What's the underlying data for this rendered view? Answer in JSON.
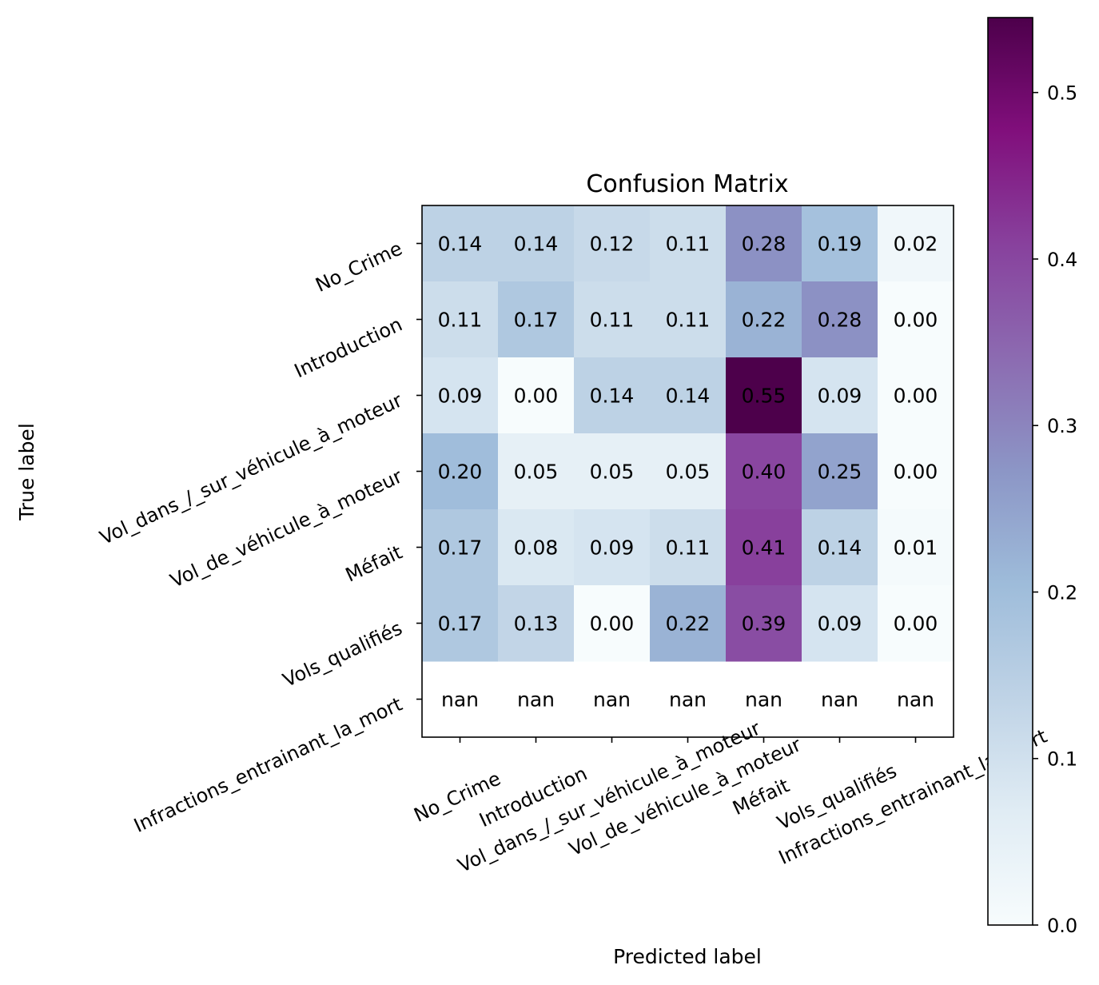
{
  "chart_data": {
    "type": "heatmap",
    "title": "Confusion Matrix",
    "xlabel": "Predicted label",
    "ylabel": "True label",
    "x_categories": [
      "No_Crime",
      "Introduction",
      "Vol_dans_/_sur_véhicule_à_moteur",
      "Vol_de_véhicule_à_moteur",
      "Méfait",
      "Vols_qualifiés",
      "Infractions_entrainant_la_mort"
    ],
    "y_categories": [
      "No_Crime",
      "Introduction",
      "Vol_dans_/_sur_véhicule_à_moteur",
      "Vol_de_véhicule_à_moteur",
      "Méfait",
      "Vols_qualifiés",
      "Infractions_entrainant_la_mort"
    ],
    "values": [
      [
        0.14,
        0.14,
        0.12,
        0.11,
        0.28,
        0.19,
        0.02
      ],
      [
        0.11,
        0.17,
        0.11,
        0.11,
        0.22,
        0.28,
        0.0
      ],
      [
        0.09,
        0.0,
        0.14,
        0.14,
        0.55,
        0.09,
        0.0
      ],
      [
        0.2,
        0.05,
        0.05,
        0.05,
        0.4,
        0.25,
        0.0
      ],
      [
        0.17,
        0.08,
        0.09,
        0.11,
        0.41,
        0.14,
        0.01
      ],
      [
        0.17,
        0.13,
        0.0,
        0.22,
        0.39,
        0.09,
        0.0
      ],
      [
        null,
        null,
        null,
        null,
        null,
        null,
        null
      ]
    ],
    "cell_labels": [
      [
        "0.14",
        "0.14",
        "0.12",
        "0.11",
        "0.28",
        "0.19",
        "0.02"
      ],
      [
        "0.11",
        "0.17",
        "0.11",
        "0.11",
        "0.22",
        "0.28",
        "0.00"
      ],
      [
        "0.09",
        "0.00",
        "0.14",
        "0.14",
        "0.55",
        "0.09",
        "0.00"
      ],
      [
        "0.20",
        "0.05",
        "0.05",
        "0.05",
        "0.40",
        "0.25",
        "0.00"
      ],
      [
        "0.17",
        "0.08",
        "0.09",
        "0.11",
        "0.41",
        "0.14",
        "0.01"
      ],
      [
        "0.17",
        "0.13",
        "0.00",
        "0.22",
        "0.39",
        "0.09",
        "0.00"
      ],
      [
        "nan",
        "nan",
        "nan",
        "nan",
        "nan",
        "nan",
        "nan"
      ]
    ],
    "colormap": "BuPu",
    "colormap_stops": [
      "#f7fcfd",
      "#e0ecf4",
      "#bfd3e6",
      "#9ebcda",
      "#8c96c6",
      "#8c6bb1",
      "#88419d",
      "#810f7c",
      "#4d004b"
    ],
    "colorbar": {
      "range": [
        0,
        0.545
      ],
      "ticks": [
        0.0,
        0.1,
        0.2,
        0.3,
        0.4,
        0.5
      ],
      "tick_labels": [
        "0.0",
        "0.1",
        "0.2",
        "0.3",
        "0.4",
        "0.5"
      ]
    },
    "grid": false
  }
}
